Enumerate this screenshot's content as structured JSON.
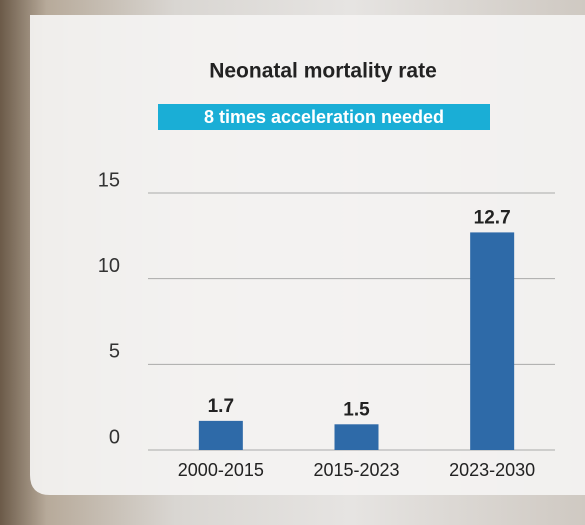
{
  "chart_data": {
    "type": "bar",
    "title": "Neonatal mortality rate",
    "subtitle": "8 times acceleration needed",
    "categories": [
      "2000-2015",
      "2015-2023",
      "2023-2030"
    ],
    "values": [
      1.7,
      1.5,
      12.7
    ],
    "color": "#2e6aa8",
    "ylim": [
      0,
      15
    ],
    "yticks": [
      0,
      5,
      10,
      15
    ],
    "grid": true
  }
}
